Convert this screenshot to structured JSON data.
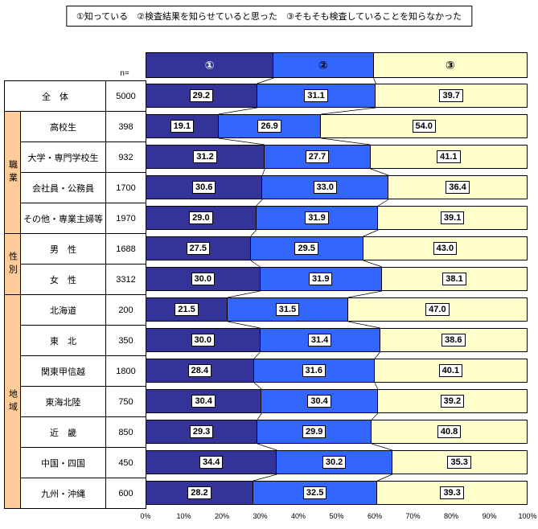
{
  "legend": {
    "text": "①知っている　②検査結果を知らせていると思った　③そもそも検査していることを知らなかった"
  },
  "n_header": "n=",
  "colors": {
    "series": [
      "#333399",
      "#3366FF",
      "#FFFFCC"
    ],
    "group_bg": "#FFCC99",
    "border": "#000000"
  },
  "header": {
    "segments": [
      {
        "symbol": "①",
        "width": 33.5,
        "text_color": "#FFFFFF"
      },
      {
        "symbol": "②",
        "width": 26.2,
        "text_color": "#000000"
      },
      {
        "symbol": "③",
        "width": 40.3,
        "text_color": "#000000"
      }
    ]
  },
  "groups": [
    {
      "label": "職業",
      "start": 1,
      "span": 4
    },
    {
      "label": "性別",
      "start": 5,
      "span": 2
    },
    {
      "label": "地域",
      "start": 7,
      "span": 7
    }
  ],
  "x_axis": {
    "ticks": [
      "0%",
      "10%",
      "20%",
      "30%",
      "40%",
      "50%",
      "60%",
      "70%",
      "80%",
      "90%",
      "100%"
    ]
  },
  "chart_data": {
    "type": "bar",
    "stacked": true,
    "orientation": "horizontal",
    "xlim": [
      0,
      100
    ],
    "series_names": [
      "①知っている",
      "②検査結果を知らせていると思った",
      "③そもそも検査していることを知らなかった"
    ],
    "rows": [
      {
        "group": "",
        "label": "全　体",
        "n": 5000,
        "values": [
          29.2,
          31.1,
          39.7
        ]
      },
      {
        "group": "職業",
        "label": "高校生",
        "n": 398,
        "values": [
          19.1,
          26.9,
          54.0
        ]
      },
      {
        "group": "職業",
        "label": "大学・専門学校生",
        "n": 932,
        "values": [
          31.2,
          27.7,
          41.1
        ]
      },
      {
        "group": "職業",
        "label": "会社員・公務員",
        "n": 1700,
        "values": [
          30.6,
          33.0,
          36.4
        ]
      },
      {
        "group": "職業",
        "label": "その他・専業主婦等",
        "n": 1970,
        "values": [
          29.0,
          31.9,
          39.1
        ]
      },
      {
        "group": "性別",
        "label": "男　性",
        "n": 1688,
        "values": [
          27.5,
          29.5,
          43.0
        ]
      },
      {
        "group": "性別",
        "label": "女　性",
        "n": 3312,
        "values": [
          30.0,
          31.9,
          38.1
        ]
      },
      {
        "group": "地域",
        "label": "北海道",
        "n": 200,
        "values": [
          21.5,
          31.5,
          47.0
        ]
      },
      {
        "group": "地域",
        "label": "東　北",
        "n": 350,
        "values": [
          30.0,
          31.4,
          38.6
        ]
      },
      {
        "group": "地域",
        "label": "関東甲信越",
        "n": 1800,
        "values": [
          28.4,
          31.6,
          40.1
        ]
      },
      {
        "group": "地域",
        "label": "東海北陸",
        "n": 750,
        "values": [
          30.4,
          30.4,
          39.2
        ]
      },
      {
        "group": "地域",
        "label": "近　畿",
        "n": 850,
        "values": [
          29.3,
          29.9,
          40.8
        ]
      },
      {
        "group": "地域",
        "label": "中国・四国",
        "n": 450,
        "values": [
          34.4,
          30.2,
          35.3
        ]
      },
      {
        "group": "地域",
        "label": "九州・沖縄",
        "n": 600,
        "values": [
          28.2,
          32.5,
          39.3
        ]
      }
    ]
  }
}
